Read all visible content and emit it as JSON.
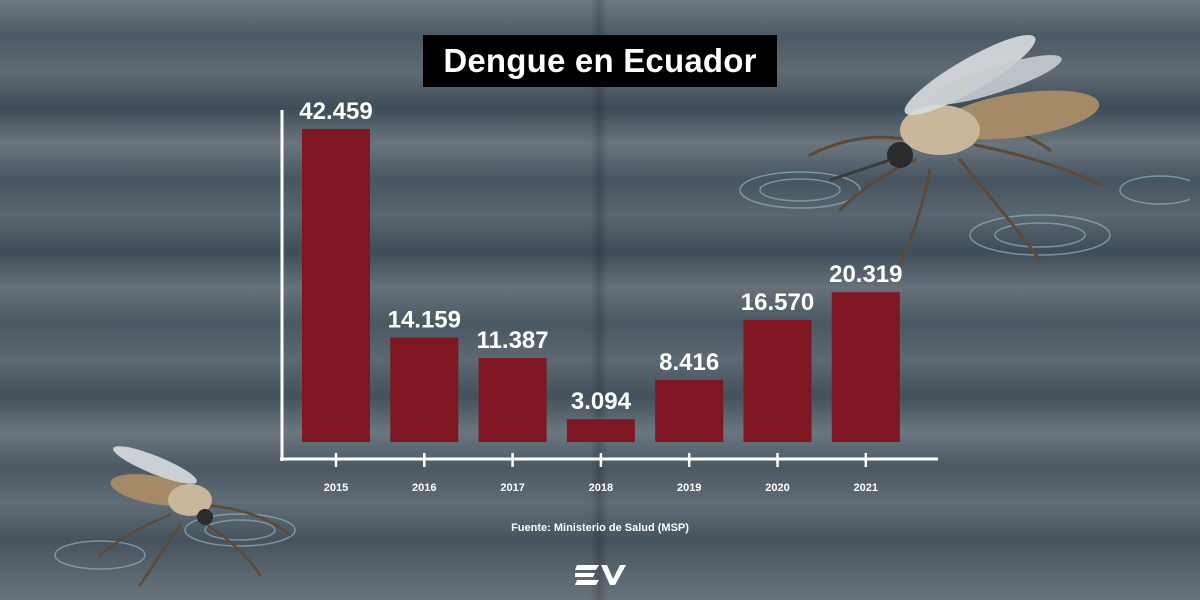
{
  "title": "Dengue en Ecuador",
  "source": "Fuente: Ministerio de Salud (MSP)",
  "colors": {
    "bar": "#7e1721",
    "axis": "#ffffff",
    "text": "#ffffff",
    "title_bg": "#000000"
  },
  "icons": {
    "logo": "ecuavisa-logo-icon",
    "mosquito": "mosquito-icon"
  },
  "chart_data": {
    "type": "bar",
    "categories": [
      "2015",
      "2016",
      "2017",
      "2018",
      "2019",
      "2020",
      "2021"
    ],
    "values": [
      42459,
      14159,
      11387,
      3094,
      8416,
      16570,
      20319
    ],
    "value_labels": [
      "42.459",
      "14.159",
      "11.387",
      "3.094",
      "8.416",
      "16.570",
      "20.319"
    ],
    "title": "Dengue en Ecuador",
    "xlabel": "",
    "ylabel": "",
    "ylim": [
      0,
      42459
    ],
    "grid": false,
    "legend": "none"
  }
}
